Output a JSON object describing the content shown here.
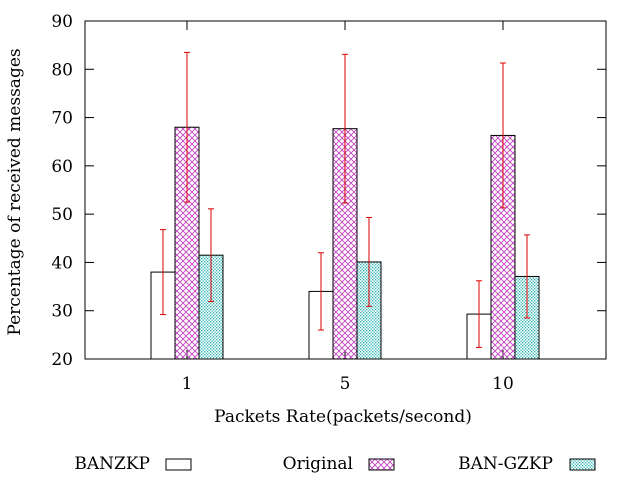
{
  "chart_data": {
    "type": "bar",
    "xlabel": "Packets Rate(packets/second)",
    "ylabel": "Percentage of received messages",
    "categories": [
      "1",
      "5",
      "10"
    ],
    "ylim": [
      20,
      90
    ],
    "yticks": [
      20,
      30,
      40,
      50,
      60,
      70,
      80,
      90
    ],
    "legend_placement": "bottom",
    "series": [
      {
        "name": "BANZKP",
        "values": [
          38.0,
          34.0,
          29.3
        ],
        "error": [
          8.8,
          8.0,
          6.9
        ],
        "fill": "none",
        "color": "#000000"
      },
      {
        "name": "Original",
        "values": [
          68.0,
          67.7,
          66.3
        ],
        "error": [
          15.5,
          15.4,
          15.0
        ],
        "fill": "crosshatch",
        "color": "#c042c0"
      },
      {
        "name": "BAN-GZKP",
        "values": [
          41.5,
          40.1,
          37.1
        ],
        "error": [
          9.6,
          9.2,
          8.6
        ],
        "fill": "dots",
        "color": "#2ab3b3"
      }
    ],
    "errorbar_color": "#dd0000",
    "grid": false
  }
}
